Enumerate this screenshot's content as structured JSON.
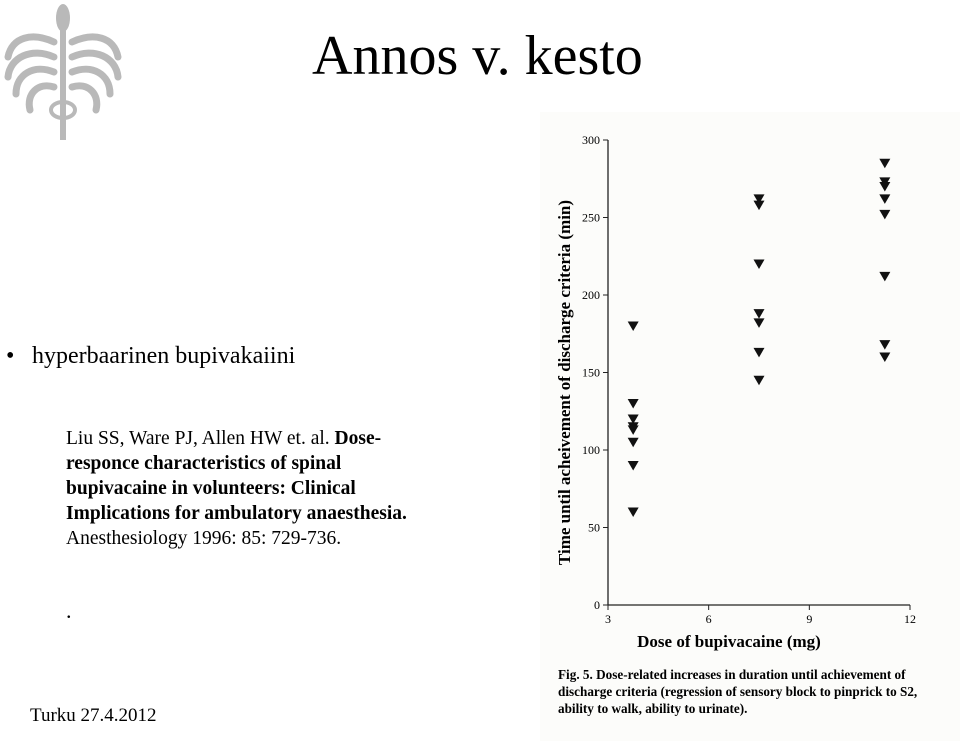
{
  "slide": {
    "title": "Annos v. kesto",
    "bullet": "hyperbaarinen bupivakaiini",
    "reference": {
      "authors": "Liu SS, Ware PJ, Allen HW et. al.",
      "title_part1": "Dose-",
      "title_part2": "responce characteristics of spinal",
      "title_part3": "bupivacaine in volunteers: Clinical",
      "title_part4": "Implications for ambulatory anaesthesia.",
      "journal": "Anesthesiology 1996: 85: 729-736."
    },
    "stray_dot": ".",
    "footer": "Turku 27.4.2012"
  },
  "figure": {
    "caption_label": "Fig. 5.",
    "caption_text": "Dose-related increases in duration until achievement of discharge criteria (regression of sensory block to pinprick to S2, ability to walk, ability to urinate)."
  },
  "chart_data": {
    "type": "scatter",
    "marker": "inverted-triangle",
    "xlabel": "Dose of bupivacaine (mg)",
    "ylabel": "Time until acheivement of discharge criteria (min)",
    "xlim": [
      3,
      12
    ],
    "ylim": [
      0,
      300
    ],
    "xticks": [
      3,
      6,
      9,
      12
    ],
    "yticks": [
      0,
      50,
      100,
      150,
      200,
      250,
      300
    ],
    "grid": false,
    "points": [
      {
        "x": 3.75,
        "y": 180
      },
      {
        "x": 3.75,
        "y": 130
      },
      {
        "x": 3.75,
        "y": 120
      },
      {
        "x": 3.75,
        "y": 115
      },
      {
        "x": 3.75,
        "y": 113
      },
      {
        "x": 3.75,
        "y": 105
      },
      {
        "x": 3.75,
        "y": 90
      },
      {
        "x": 3.75,
        "y": 60
      },
      {
        "x": 7.5,
        "y": 262
      },
      {
        "x": 7.5,
        "y": 258
      },
      {
        "x": 7.5,
        "y": 220
      },
      {
        "x": 7.5,
        "y": 188
      },
      {
        "x": 7.5,
        "y": 182
      },
      {
        "x": 7.5,
        "y": 163
      },
      {
        "x": 7.5,
        "y": 145
      },
      {
        "x": 11.25,
        "y": 285
      },
      {
        "x": 11.25,
        "y": 273
      },
      {
        "x": 11.25,
        "y": 270
      },
      {
        "x": 11.25,
        "y": 262
      },
      {
        "x": 11.25,
        "y": 252
      },
      {
        "x": 11.25,
        "y": 212
      },
      {
        "x": 11.25,
        "y": 168
      },
      {
        "x": 11.25,
        "y": 160
      }
    ]
  }
}
